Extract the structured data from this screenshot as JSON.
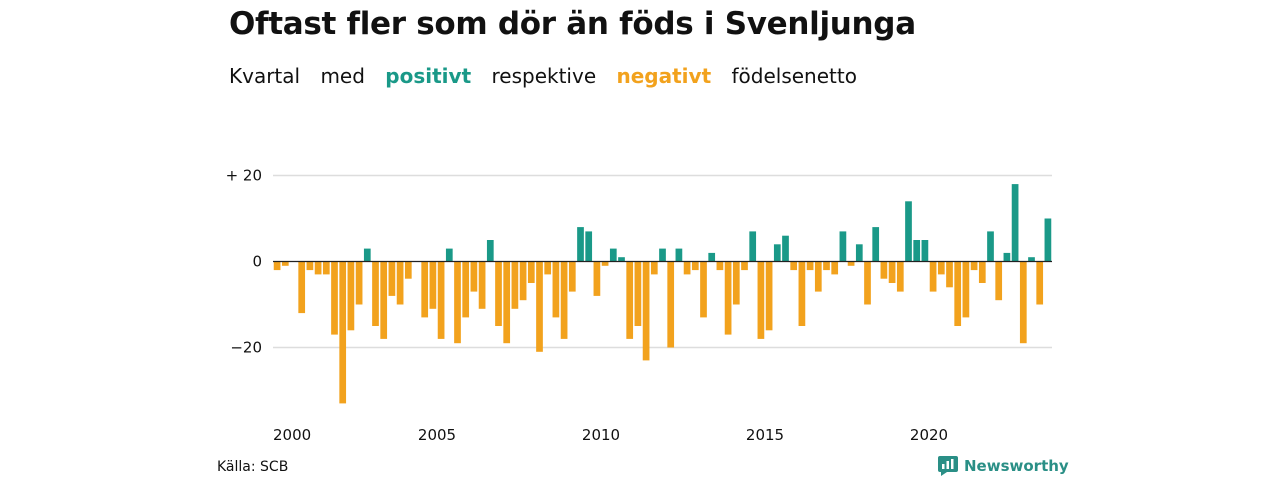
{
  "title": "Oftast fler som dör än föds i Svenljunga",
  "subtitle": {
    "w1": "Kvartal",
    "w2": "med",
    "positive": "positivt",
    "w3": "respektive",
    "negative": "negativt",
    "w4": "födelsenetto"
  },
  "source": "Källa: SCB",
  "brand": "Newsworthy",
  "colors": {
    "positive": "#1a9988",
    "negative": "#f2a21d",
    "grid": "#dddddd",
    "zero": "#222222"
  },
  "chart_data": {
    "type": "bar",
    "title": "Oftast fler som dör än föds i Svenljunga",
    "xlabel": "",
    "ylabel": "",
    "ylim": [
      -35,
      20
    ],
    "yticks": [
      {
        "value": 20,
        "label": "+ 20"
      },
      {
        "value": 0,
        "label": "0"
      },
      {
        "value": -20,
        "label": "−20"
      }
    ],
    "xticks": [
      {
        "year": 2000,
        "label": "2000"
      },
      {
        "year": 2005,
        "label": "2005"
      },
      {
        "year": 2010,
        "label": "2010"
      },
      {
        "year": 2015,
        "label": "2015"
      },
      {
        "year": 2020,
        "label": "2020"
      }
    ],
    "start": "2000 Q1",
    "grid": true,
    "values": [
      -2,
      -1,
      0,
      -12,
      -2,
      -3,
      -3,
      -17,
      -33,
      -16,
      -10,
      3,
      -15,
      -18,
      -8,
      -10,
      -4,
      0,
      -13,
      -11,
      -18,
      3,
      -19,
      -13,
      -7,
      -11,
      5,
      -15,
      -19,
      -11,
      -9,
      -5,
      -21,
      -3,
      -13,
      -18,
      -7,
      8,
      7,
      -8,
      -1,
      3,
      1,
      -18,
      -15,
      -23,
      -3,
      3,
      -20,
      3,
      -3,
      -2,
      -13,
      2,
      -2,
      -17,
      -10,
      -2,
      7,
      -18,
      -16,
      4,
      6,
      -2,
      -15,
      -2,
      -7,
      -2,
      -3,
      7,
      -1,
      4,
      -10,
      8,
      -4,
      -5,
      -7,
      14,
      5,
      5,
      -7,
      -3,
      -6,
      -15,
      -13,
      -2,
      -5,
      7,
      -9,
      2,
      18,
      -19,
      1,
      -10,
      10
    ]
  }
}
